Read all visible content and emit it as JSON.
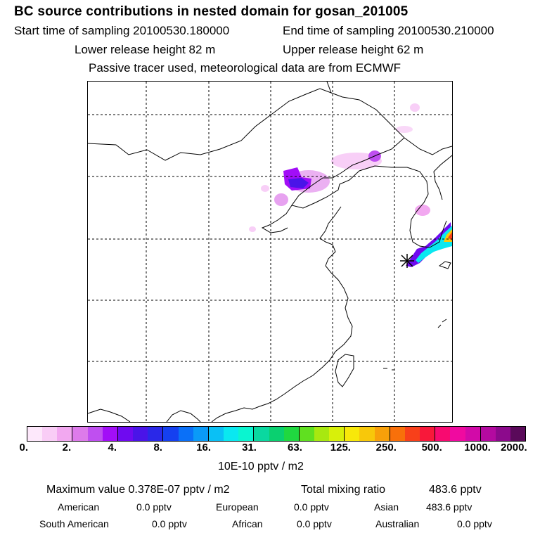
{
  "header": {
    "title": "BC  source contributions in nested domain for gosan_201005",
    "start_time": "Start time of sampling 20100530.180000",
    "end_time": "End time of sampling 20100530.210000",
    "lower_release": "Lower release height   82 m",
    "upper_release": "Upper release height   62 m",
    "tracer_note": "Passive tracer used, meteorological data are from ECMWF"
  },
  "map": {
    "release_marker": "release-site-star",
    "grid": "dashed lat/lon lines"
  },
  "colorbar": {
    "colors": [
      "#fde8fb",
      "#f9cdf6",
      "#f2a8f0",
      "#dd7bea",
      "#bf4ff0",
      "#a20ef7",
      "#6f0af0",
      "#4a14e8",
      "#2a28e8",
      "#1540f0",
      "#0a70f8",
      "#0a9af8",
      "#0ac0f5",
      "#0ae8f0",
      "#0af5d0",
      "#0ad8a0",
      "#0ad070",
      "#20d840",
      "#60e020",
      "#a8e810",
      "#d8f00a",
      "#f8e80a",
      "#f8c80a",
      "#f8a00a",
      "#f8700a",
      "#f8401a",
      "#f8183a",
      "#f80a70",
      "#f00aa0",
      "#d20aa8",
      "#b40aa0",
      "#8c0a8c",
      "#5a0a5a"
    ],
    "tick_labels": [
      "0.",
      "2.",
      "4.",
      "8.",
      "16.",
      "31.",
      "63.",
      "125.",
      "250.",
      "500.",
      "1000.",
      "2000."
    ],
    "unit_label": "10E-10 pptv / m2"
  },
  "summary": {
    "max_value": "Maximum value  0.378E-07 pptv / m2",
    "total_mixing": "Total mixing ratio",
    "total_value": "483.6 pptv",
    "regions": [
      {
        "name": "American",
        "value": "0.0 pptv"
      },
      {
        "name": "European",
        "value": "0.0 pptv"
      },
      {
        "name": "Asian",
        "value": "483.6 pptv"
      },
      {
        "name": "South American",
        "value": "0.0 pptv"
      },
      {
        "name": "African",
        "value": "0.0 pptv"
      },
      {
        "name": "Australian",
        "value": "0.0 pptv"
      }
    ]
  }
}
